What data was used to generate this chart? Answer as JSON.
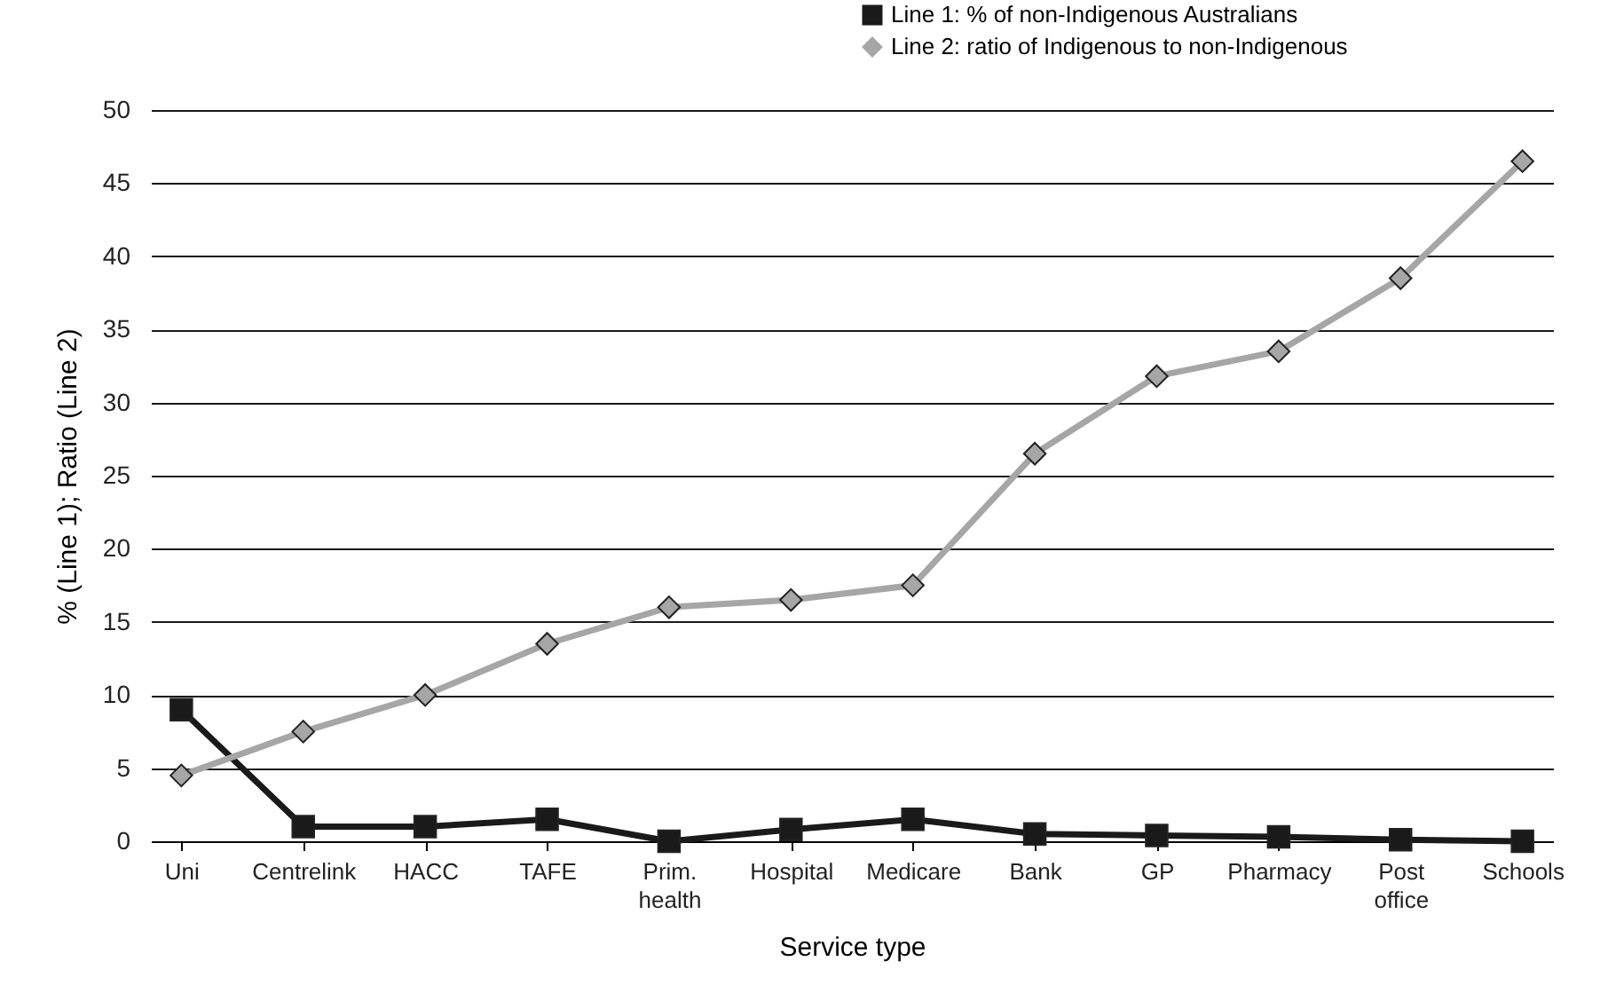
{
  "chart_data": {
    "type": "line",
    "xlabel": "Service type",
    "ylabel": "% (Line 1); Ratio (Line 2)",
    "categories": [
      "Uni",
      "Centrelink",
      "HACC",
      "TAFE",
      "Prim. health",
      "Hospital",
      "Medicare",
      "Bank",
      "GP",
      "Pharmacy",
      "Post office",
      "Schools"
    ],
    "series": [
      {
        "name": "Line 1: % of non-Indigenous Australians",
        "color": "#1a1a1a",
        "marker": "square",
        "values": [
          9,
          1,
          1,
          1.5,
          0,
          0.8,
          1.5,
          0.5,
          0.4,
          0.3,
          0.1,
          0
        ]
      },
      {
        "name": "Line 2: ratio of Indigenous to non-Indigenous",
        "color": "#a6a6a6",
        "marker": "diamond",
        "values": [
          4.5,
          7.5,
          10,
          13.5,
          16,
          16.5,
          17.5,
          26.5,
          31.8,
          33.5,
          38.5,
          46.5
        ]
      }
    ],
    "ylim": [
      0,
      50
    ],
    "yticks": [
      0,
      5,
      10,
      15,
      20,
      25,
      30,
      35,
      40,
      45,
      50
    ],
    "grid": "y",
    "legend": "top right",
    "line_style": "solid"
  }
}
